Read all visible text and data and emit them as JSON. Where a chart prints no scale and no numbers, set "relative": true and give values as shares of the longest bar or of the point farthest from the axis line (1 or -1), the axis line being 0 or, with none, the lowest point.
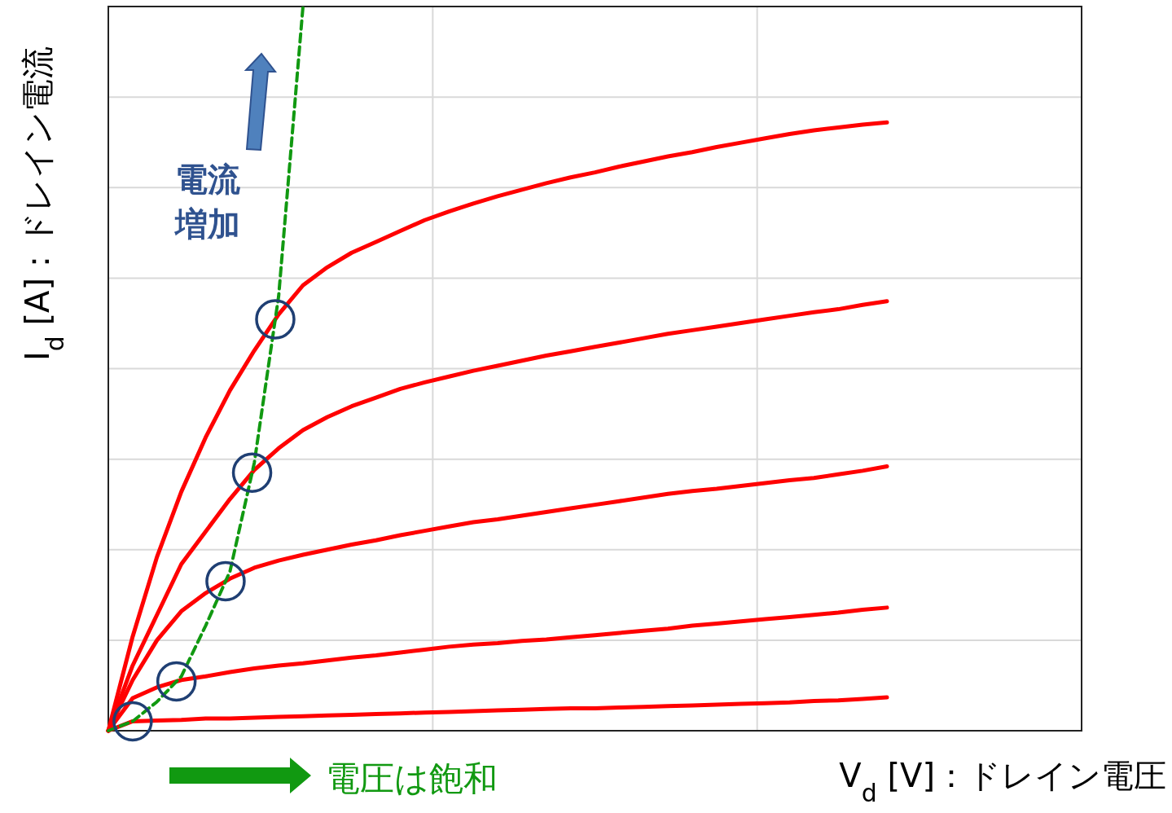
{
  "chart_data": {
    "type": "line",
    "relative": true,
    "grid": true,
    "xlabel": "V$_{d}$ [V]：ドレイン電圧",
    "ylabel": "I$_{d}$ [A]：ドレイン電流",
    "annotations": [
      "電流",
      "増加",
      "電圧は飽和"
    ],
    "categories": [
      null,
      null,
      null,
      null,
      null,
      null,
      null,
      null,
      null,
      null,
      null,
      null,
      null,
      null,
      null,
      null,
      null,
      null,
      null,
      null,
      null,
      null,
      null,
      null,
      null,
      null,
      null,
      null,
      null,
      null,
      null,
      null,
      null,
      null,
      null,
      null,
      null,
      null,
      null,
      null,
      null
    ],
    "series": [
      {
        "color": "#ff0000",
        "values": [
          0,
          0.013,
          0.014,
          0.015,
          0.017,
          0.017,
          0.018,
          0.019,
          0.02,
          0.021,
          0.022,
          0.023,
          0.024,
          0.025,
          0.026,
          0.027,
          0.028,
          0.029,
          0.03,
          0.031,
          0.031,
          0.032,
          0.033,
          0.034,
          0.035,
          0.036,
          0.037,
          0.038,
          0.039,
          0.041,
          0.042,
          0.044,
          0.046,
          null,
          null,
          null,
          null,
          null,
          null,
          null,
          null
        ]
      },
      {
        "color": "#ff0000",
        "values": [
          0,
          0.045,
          0.06,
          0.07,
          0.075,
          0.081,
          0.086,
          0.09,
          0.093,
          0.097,
          0.101,
          0.104,
          0.108,
          0.112,
          0.116,
          0.119,
          0.121,
          0.124,
          0.126,
          0.129,
          0.132,
          0.135,
          0.138,
          0.141,
          0.145,
          0.148,
          0.151,
          0.154,
          0.157,
          0.16,
          0.163,
          0.167,
          0.17,
          null,
          null,
          null,
          null,
          null,
          null,
          null,
          null
        ]
      },
      {
        "color": "#ff0000",
        "values": [
          0,
          0.07,
          0.125,
          0.165,
          0.19,
          0.21,
          0.225,
          0.235,
          0.243,
          0.25,
          0.257,
          0.263,
          0.27,
          0.276,
          0.282,
          0.288,
          0.292,
          0.297,
          0.302,
          0.307,
          0.312,
          0.317,
          0.322,
          0.327,
          0.331,
          0.334,
          0.338,
          0.342,
          0.346,
          0.349,
          0.354,
          0.359,
          0.365,
          null,
          null,
          null,
          null,
          null,
          null,
          null,
          null
        ]
      },
      {
        "color": "#ff0000",
        "values": [
          0,
          0.09,
          0.16,
          0.23,
          0.275,
          0.32,
          0.36,
          0.39,
          0.415,
          0.433,
          0.448,
          0.46,
          0.472,
          0.481,
          0.489,
          0.497,
          0.504,
          0.511,
          0.518,
          0.524,
          0.53,
          0.536,
          0.542,
          0.548,
          0.553,
          0.558,
          0.563,
          0.568,
          0.573,
          0.578,
          0.582,
          0.588,
          0.593,
          null,
          null,
          null,
          null,
          null,
          null,
          null,
          null
        ]
      },
      {
        "color": "#ff0000",
        "values": [
          0,
          0.13,
          0.24,
          0.33,
          0.405,
          0.47,
          0.525,
          0.575,
          0.615,
          0.64,
          0.66,
          0.675,
          0.69,
          0.705,
          0.717,
          0.728,
          0.738,
          0.747,
          0.756,
          0.764,
          0.771,
          0.779,
          0.786,
          0.793,
          0.799,
          0.806,
          0.812,
          0.818,
          0.824,
          0.829,
          0.833,
          0.837,
          0.84,
          null,
          null,
          null,
          null,
          null,
          null,
          null,
          null
        ]
      },
      {
        "color": "#119911",
        "line_style": "dashed",
        "values": [
          0,
          0.013,
          0.04,
          0.075,
          0.145,
          0.22,
          0.37,
          0.6,
          1,
          null,
          null,
          null,
          null,
          null,
          null,
          null,
          null,
          null,
          null,
          null,
          null,
          null,
          null,
          null,
          null,
          null,
          null,
          null,
          null,
          null,
          null,
          null,
          null,
          null,
          null,
          null,
          null,
          null,
          null,
          null,
          null
        ]
      }
    ]
  }
}
